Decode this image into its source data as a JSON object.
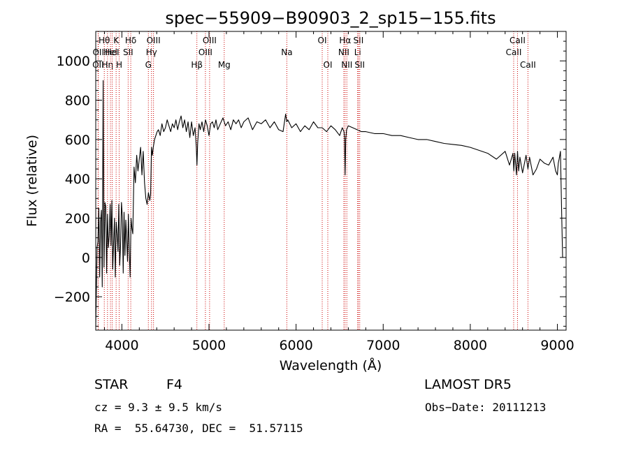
{
  "chart_data": {
    "type": "line",
    "title": "spec−55909−B90903_2_sp15−155.fits",
    "xlabel": "Wavelength (Å)",
    "ylabel": "Flux (relative)",
    "xlim": [
      3700,
      9100
    ],
    "ylim": [
      -370,
      1150
    ],
    "x_ticks": [
      4000,
      5000,
      6000,
      7000,
      8000,
      9000
    ],
    "y_ticks": [
      -200,
      0,
      200,
      400,
      600,
      800,
      1000
    ],
    "y_tick_labels": [
      "−200",
      "0",
      "200",
      "400",
      "600",
      "800",
      "1000"
    ],
    "line_color": "#000000",
    "marker_color": "#cc0000",
    "series": [
      {
        "x": [
          3700,
          3715,
          3725,
          3735,
          3745,
          3755,
          3765,
          3775,
          3785,
          3795,
          3805,
          3815,
          3825,
          3835,
          3845,
          3855,
          3865,
          3875,
          3885,
          3895,
          3905,
          3915,
          3925,
          3935,
          3945,
          3955,
          3965,
          3975,
          3985,
          3995,
          4005,
          4015,
          4025,
          4035,
          4045,
          4055,
          4065,
          4075,
          4085,
          4095,
          4105,
          4115,
          4125,
          4140,
          4155,
          4170,
          4185,
          4200,
          4215,
          4230,
          4245,
          4260,
          4275,
          4290,
          4305,
          4320,
          4330,
          4340,
          4350,
          4360,
          4375,
          4390,
          4405,
          4420,
          4440,
          4460,
          4480,
          4500,
          4520,
          4540,
          4560,
          4580,
          4600,
          4620,
          4640,
          4660,
          4680,
          4700,
          4720,
          4740,
          4760,
          4780,
          4800,
          4820,
          4840,
          4855,
          4862,
          4870,
          4885,
          4900,
          4920,
          4940,
          4960,
          4980,
          5000,
          5020,
          5040,
          5060,
          5080,
          5100,
          5130,
          5160,
          5190,
          5220,
          5250,
          5280,
          5310,
          5340,
          5370,
          5400,
          5450,
          5500,
          5550,
          5600,
          5650,
          5700,
          5750,
          5800,
          5850,
          5880,
          5893,
          5905,
          5950,
          6000,
          6050,
          6100,
          6150,
          6200,
          6250,
          6300,
          6350,
          6400,
          6450,
          6500,
          6530,
          6550,
          6556,
          6563,
          6570,
          6580,
          6600,
          6650,
          6700,
          6750,
          6800,
          6900,
          7000,
          7100,
          7200,
          7300,
          7400,
          7500,
          7600,
          7700,
          7800,
          7900,
          8000,
          8100,
          8200,
          8300,
          8400,
          8450,
          8490,
          8500,
          8510,
          8530,
          8542,
          8555,
          8570,
          8600,
          8640,
          8662,
          8680,
          8720,
          8760,
          8800,
          8850,
          8900,
          8950,
          8980,
          9000,
          9010,
          9020,
          9035,
          9050,
          9060
        ],
        "y": [
          -350,
          50,
          80,
          250,
          -100,
          180,
          240,
          -150,
          900,
          -50,
          280,
          260,
          -80,
          220,
          50,
          110,
          270,
          60,
          290,
          -60,
          70,
          200,
          -100,
          180,
          120,
          30,
          270,
          -40,
          60,
          280,
          210,
          -80,
          230,
          10,
          190,
          100,
          -20,
          220,
          30,
          -100,
          200,
          150,
          120,
          460,
          380,
          520,
          440,
          500,
          560,
          420,
          540,
          380,
          300,
          270,
          330,
          290,
          320,
          560,
          520,
          560,
          600,
          620,
          640,
          650,
          620,
          680,
          640,
          660,
          700,
          670,
          640,
          680,
          660,
          700,
          650,
          690,
          720,
          660,
          700,
          640,
          690,
          610,
          690,
          620,
          660,
          560,
          470,
          580,
          680,
          650,
          690,
          640,
          700,
          670,
          620,
          680,
          690,
          660,
          700,
          650,
          680,
          710,
          670,
          690,
          650,
          700,
          680,
          700,
          660,
          690,
          710,
          650,
          690,
          680,
          700,
          660,
          690,
          650,
          640,
          730,
          690,
          700,
          660,
          680,
          640,
          670,
          650,
          690,
          660,
          660,
          640,
          670,
          650,
          620,
          660,
          640,
          610,
          420,
          600,
          650,
          670,
          660,
          650,
          640,
          640,
          630,
          630,
          620,
          620,
          610,
          600,
          600,
          590,
          580,
          575,
          570,
          560,
          545,
          530,
          500,
          540,
          470,
          530,
          440,
          530,
          420,
          540,
          440,
          510,
          430,
          520,
          450,
          510,
          420,
          450,
          500,
          480,
          470,
          510,
          440,
          420,
          480,
          500,
          540,
          200,
          0
        ]
      }
    ],
    "lines": [
      {
        "wl": 3727,
        "label": "OII",
        "row": 3
      },
      {
        "wl": 3730,
        "label": "OII",
        "row": 2
      },
      {
        "wl": 3798,
        "label": "Hθ",
        "row": 1
      },
      {
        "wl": 3835,
        "label": "Hη",
        "row": 3
      },
      {
        "wl": 3869,
        "label": "HeI",
        "row": 2
      },
      {
        "wl": 3889,
        "label": "HeI",
        "row": 2
      },
      {
        "wl": 3934,
        "label": "K",
        "row": 1
      },
      {
        "wl": 3969,
        "label": "H",
        "row": 3
      },
      {
        "wl": 4072,
        "label": "SII",
        "row": 2
      },
      {
        "wl": 4102,
        "label": "Hδ",
        "row": 1
      },
      {
        "wl": 4304,
        "label": "G",
        "row": 3
      },
      {
        "wl": 4340,
        "label": "Hγ",
        "row": 2
      },
      {
        "wl": 4363,
        "label": "OIII",
        "row": 1
      },
      {
        "wl": 4861,
        "label": "Hβ",
        "row": 3
      },
      {
        "wl": 4959,
        "label": "OIII",
        "row": 2
      },
      {
        "wl": 5007,
        "label": "OIII",
        "row": 1
      },
      {
        "wl": 5175,
        "label": "Mg",
        "row": 3
      },
      {
        "wl": 5894,
        "label": "Na",
        "row": 2
      },
      {
        "wl": 6300,
        "label": "OI",
        "row": 1
      },
      {
        "wl": 6364,
        "label": "OI",
        "row": 3
      },
      {
        "wl": 6548,
        "label": "NII",
        "row": 2
      },
      {
        "wl": 6563,
        "label": "Hα",
        "row": 1
      },
      {
        "wl": 6583,
        "label": "NII",
        "row": 3
      },
      {
        "wl": 6707,
        "label": "Li",
        "row": 2
      },
      {
        "wl": 6716,
        "label": "SII",
        "row": 1
      },
      {
        "wl": 6731,
        "label": "SII",
        "row": 3
      },
      {
        "wl": 8498,
        "label": "CaII",
        "row": 2
      },
      {
        "wl": 8542,
        "label": "CaII",
        "row": 1
      },
      {
        "wl": 8662,
        "label": "CaII",
        "row": 3
      }
    ]
  },
  "info": {
    "object_class": "STAR",
    "subclass": "F4",
    "survey": "LAMOST DR5",
    "redshift_line": "cz = 9.3 ± 9.5 km/s",
    "obs_date_line": "Obs−Date: 20111213",
    "coords_line": "RA =  55.64730, DEC =  51.57115"
  }
}
